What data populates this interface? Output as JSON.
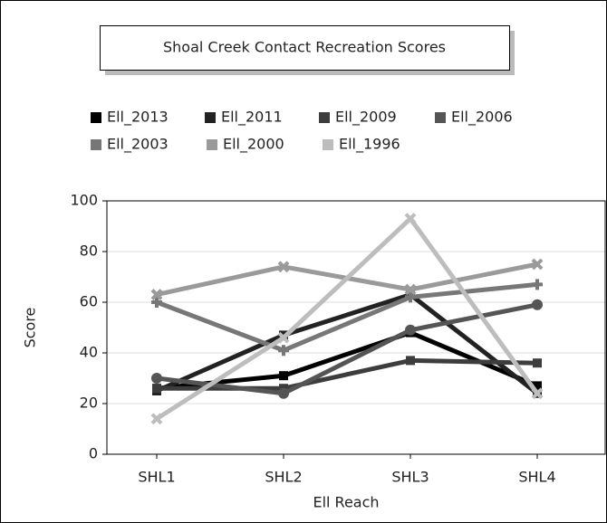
{
  "chart_data": {
    "type": "line",
    "title": "Shoal Creek Contact Recreation Scores",
    "xlabel": "Ell Reach",
    "ylabel": "Score",
    "categories": [
      "SHL1",
      "SHL2",
      "SHL3",
      "SHL4"
    ],
    "series": [
      {
        "name": "Ell_2013",
        "color": "#000000",
        "values": [
          26,
          31,
          48,
          27
        ]
      },
      {
        "name": "Ell_2011",
        "color": "#222222",
        "values": [
          25,
          47,
          63,
          24
        ]
      },
      {
        "name": "Ell_2009",
        "color": "#3d3d3d",
        "values": [
          26,
          26,
          37,
          36
        ]
      },
      {
        "name": "Ell_2006",
        "color": "#555555",
        "values": [
          30,
          24,
          49,
          59
        ]
      },
      {
        "name": "Ell_2003",
        "color": "#777777",
        "values": [
          60,
          41,
          62,
          67
        ]
      },
      {
        "name": "Ell_2000",
        "color": "#9a9a9a",
        "values": [
          63,
          74,
          65,
          75
        ]
      },
      {
        "name": "Ell_1996",
        "color": "#bdbdbd",
        "values": [
          14,
          46,
          93,
          24
        ]
      }
    ],
    "ylim": [
      0,
      100
    ],
    "yticks": [
      0,
      20,
      40,
      60,
      80,
      100
    ],
    "grid": true,
    "legend": "top"
  }
}
